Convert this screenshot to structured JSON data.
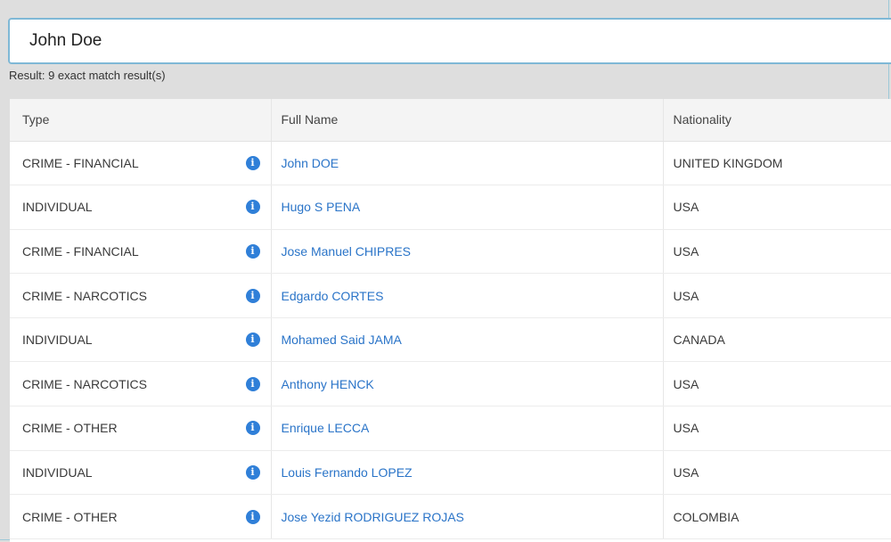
{
  "search": {
    "value": "John Doe",
    "placeholder": ""
  },
  "result_text": "Result: 9 exact match result(s)",
  "table": {
    "headers": {
      "type": "Type",
      "full_name": "Full Name",
      "nationality": "Nationality"
    },
    "rows": [
      {
        "type": "CRIME - FINANCIAL",
        "name": "John DOE",
        "nationality": "UNITED KINGDOM"
      },
      {
        "type": "INDIVIDUAL",
        "name": "Hugo S PENA",
        "nationality": "USA"
      },
      {
        "type": "CRIME - FINANCIAL",
        "name": "Jose Manuel CHIPRES",
        "nationality": "USA"
      },
      {
        "type": "CRIME - NARCOTICS",
        "name": "Edgardo CORTES",
        "nationality": "USA"
      },
      {
        "type": "INDIVIDUAL",
        "name": "Mohamed Said JAMA",
        "nationality": "CANADA"
      },
      {
        "type": "CRIME - NARCOTICS",
        "name": "Anthony HENCK",
        "nationality": "USA"
      },
      {
        "type": "CRIME - OTHER",
        "name": "Enrique LECCA",
        "nationality": "USA"
      },
      {
        "type": "INDIVIDUAL",
        "name": "Louis Fernando LOPEZ",
        "nationality": "USA"
      },
      {
        "type": "CRIME - OTHER",
        "name": "Jose Yezid RODRIGUEZ ROJAS",
        "nationality": "COLOMBIA"
      }
    ]
  },
  "icons": {
    "info": "info-icon"
  },
  "colors": {
    "link": "#2a74c8",
    "info_icon": "#2f7fd8",
    "search_border": "#7fb8d6"
  }
}
